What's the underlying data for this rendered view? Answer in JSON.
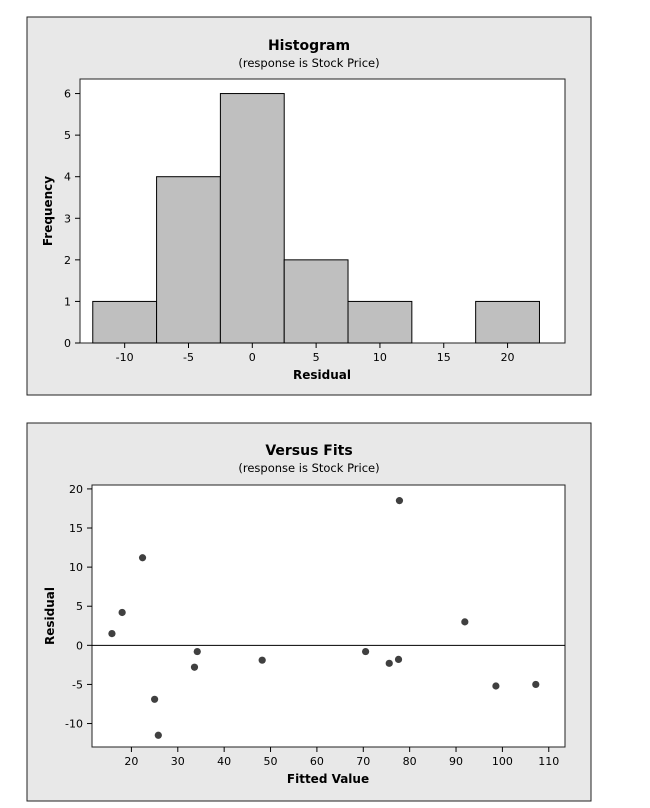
{
  "chart_data": [
    {
      "type": "bar",
      "title": "Histogram",
      "subtitle": "(response is Stock Price)",
      "xlabel": "Residual",
      "ylabel": "Frequency",
      "bin_width": 5,
      "bin_centers": [
        -10,
        -5,
        0,
        5,
        10,
        15,
        20
      ],
      "values": [
        1,
        4,
        6,
        2,
        1,
        0,
        1
      ],
      "xticks": [
        -10,
        -5,
        0,
        5,
        10,
        15,
        20
      ],
      "yticks": [
        0,
        1,
        2,
        3,
        4,
        5,
        6
      ],
      "xlim": [
        -13.5,
        24.5
      ],
      "ylim": [
        0,
        6.35
      ],
      "grid": false,
      "colors": {
        "bar": "#bfbfbf",
        "panel": "#e8e8e8"
      }
    },
    {
      "type": "scatter",
      "title": "Versus Fits",
      "subtitle": "(response is Stock Price)",
      "xlabel": "Fitted Value",
      "ylabel": "Residual",
      "x": [
        15.8,
        18.0,
        22.4,
        25.0,
        25.8,
        33.6,
        34.2,
        48.2,
        70.5,
        75.6,
        77.6,
        77.8,
        91.9,
        98.6,
        107.2
      ],
      "y": [
        1.5,
        4.2,
        11.2,
        -6.9,
        -11.5,
        -2.8,
        -0.8,
        -1.9,
        -0.8,
        -2.3,
        -1.8,
        18.5,
        3.0,
        -5.2,
        -5.0
      ],
      "xticks": [
        20,
        30,
        40,
        50,
        60,
        70,
        80,
        90,
        100,
        110
      ],
      "yticks": [
        -10,
        -5,
        0,
        5,
        10,
        15,
        20
      ],
      "xlim": [
        11.5,
        113.5
      ],
      "ylim": [
        -13,
        20.5
      ],
      "reference_line_y": 0,
      "grid": false,
      "colors": {
        "point": "#404040",
        "panel": "#e8e8e8"
      }
    }
  ]
}
